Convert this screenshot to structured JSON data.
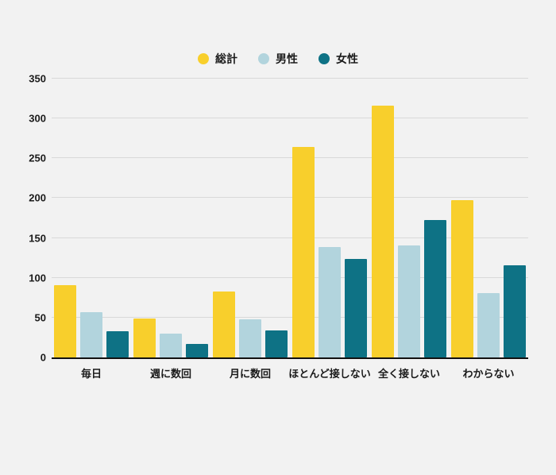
{
  "background_color": "#f2f2f2",
  "chart_data": {
    "type": "bar",
    "title": "",
    "xlabel": "",
    "ylabel": "",
    "categories": [
      "毎日",
      "週に数回",
      "月に数回",
      "ほとんど接しない",
      "全く接しない",
      "わからない"
    ],
    "series": [
      {
        "name": "総計",
        "color": "#F8CF2C",
        "values": [
          91,
          49,
          83,
          264,
          316,
          197
        ]
      },
      {
        "name": "男性",
        "color": "#B2D4DD",
        "values": [
          57,
          30,
          48,
          139,
          141,
          81
        ]
      },
      {
        "name": "女性",
        "color": "#0E7285",
        "values": [
          33,
          17,
          34,
          124,
          173,
          116
        ]
      }
    ],
    "ylim": [
      0,
      350
    ],
    "yticks": [
      0,
      50,
      100,
      150,
      200,
      250,
      300,
      350
    ],
    "grid": true,
    "legend_position": "top"
  }
}
